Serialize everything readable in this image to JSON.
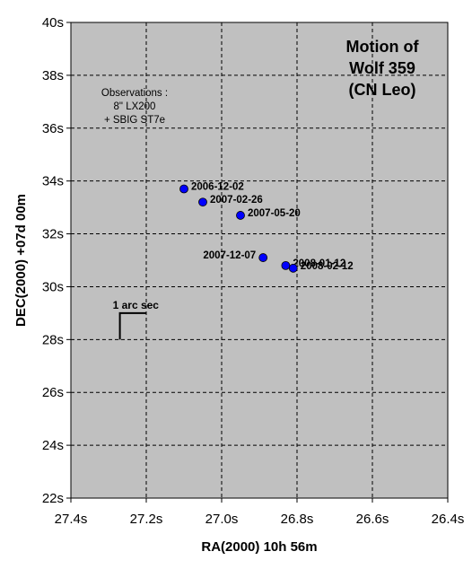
{
  "chart_data": {
    "type": "scatter",
    "title_lines": [
      "Motion of",
      "Wolf 359",
      "(CN Leo)"
    ],
    "xlabel": "RA(2000) 10h 56m",
    "ylabel": "DEC(2000) +07d 00m",
    "xlim": [
      27.4,
      26.4
    ],
    "ylim": [
      22,
      40
    ],
    "x_reversed": true,
    "grid": true,
    "plot_background": "#c0c0c0",
    "marker_color": "#0000ff",
    "x_ticks": [
      {
        "value": 27.4,
        "label": "27.4s"
      },
      {
        "value": 27.2,
        "label": "27.2s"
      },
      {
        "value": 27.0,
        "label": "27.0s"
      },
      {
        "value": 26.8,
        "label": "26.8s"
      },
      {
        "value": 26.6,
        "label": "26.6s"
      },
      {
        "value": 26.4,
        "label": "26.4s"
      }
    ],
    "y_ticks": [
      {
        "value": 22,
        "label": "22s"
      },
      {
        "value": 24,
        "label": "24s"
      },
      {
        "value": 26,
        "label": "26s"
      },
      {
        "value": 28,
        "label": "28s"
      },
      {
        "value": 30,
        "label": "30s"
      },
      {
        "value": 32,
        "label": "32s"
      },
      {
        "value": 34,
        "label": "34s"
      },
      {
        "value": 36,
        "label": "36s"
      },
      {
        "value": 38,
        "label": "38s"
      },
      {
        "value": 40,
        "label": "40s"
      }
    ],
    "points": [
      {
        "label": "2006-12-02",
        "x": 27.1,
        "y": 33.7,
        "label_side": "right"
      },
      {
        "label": "2007-02-26",
        "x": 27.05,
        "y": 33.2,
        "label_side": "right"
      },
      {
        "label": "2007-05-20",
        "x": 26.95,
        "y": 32.7,
        "label_side": "right"
      },
      {
        "label": "2007-12-07",
        "x": 26.89,
        "y": 31.1,
        "label_side": "left"
      },
      {
        "label": "2008-01-12",
        "x": 26.83,
        "y": 30.8,
        "label_side": "right"
      },
      {
        "label": "2008-02-12",
        "x": 26.81,
        "y": 30.7,
        "label_side": "right"
      }
    ],
    "annotations": {
      "observations": [
        "Observations :",
        "8\" LX200",
        "+ SBIG ST7e"
      ],
      "scale_bar_label": "1 arc sec",
      "scale_bar_value": 1
    }
  }
}
